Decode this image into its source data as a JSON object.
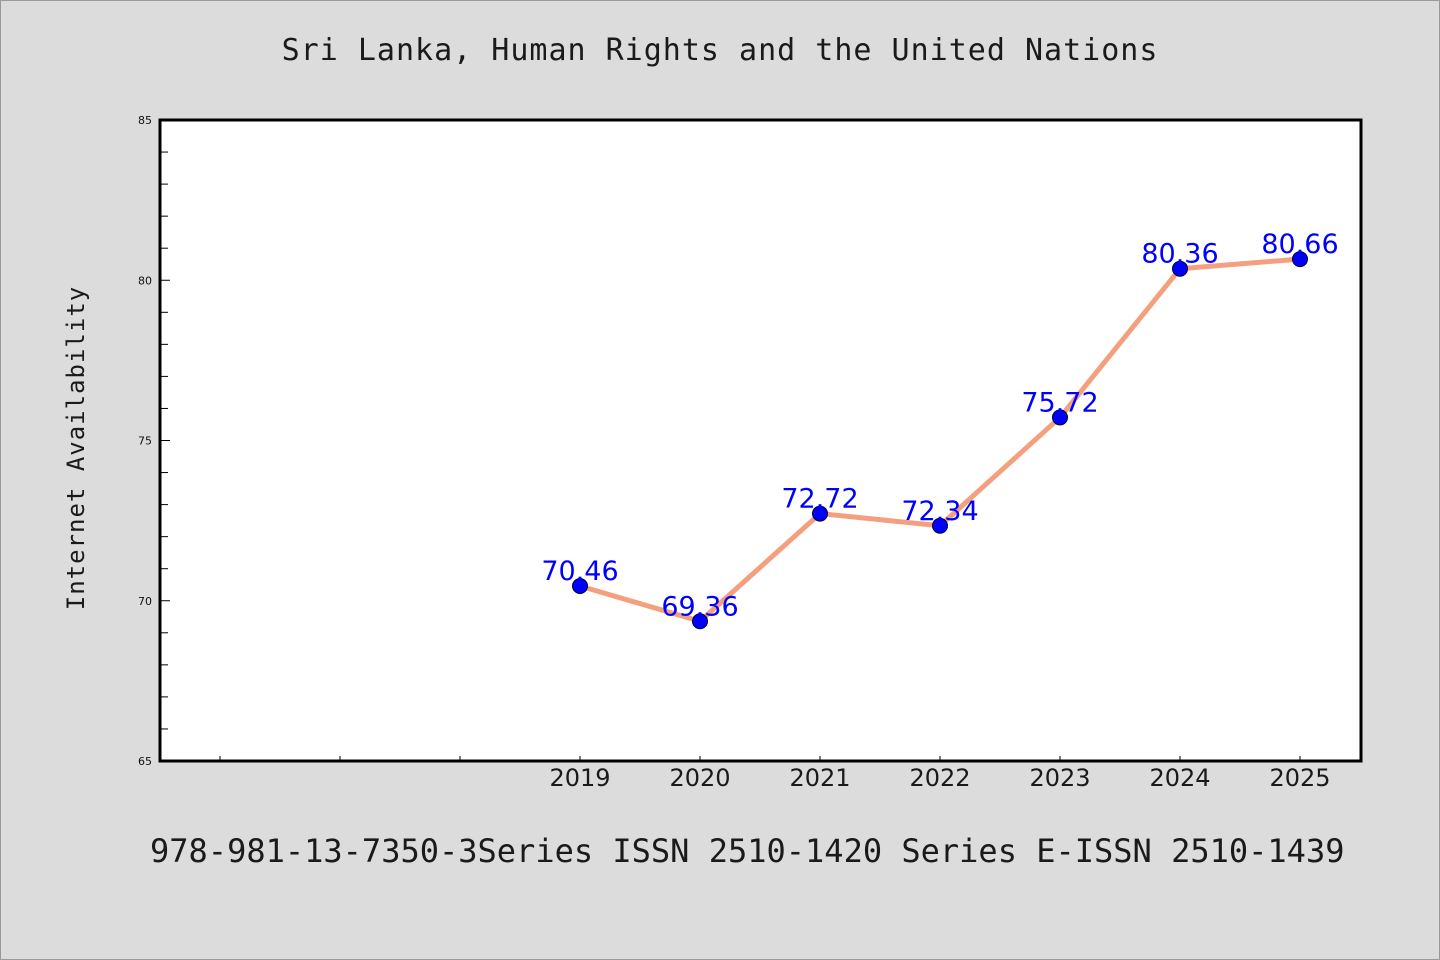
{
  "chart_data": {
    "type": "line",
    "title": "Sri Lanka, Human Rights and the United Nations",
    "ylabel": "Internet Availability",
    "xlabel": "",
    "footer": "978-981-13-7350-3Series ISSN 2510-1420 Series E-ISSN 2510-1439",
    "categories": [
      "2019",
      "2020",
      "2021",
      "2022",
      "2023",
      "2024",
      "2025"
    ],
    "series": [
      {
        "values": [
          70.46,
          69.36,
          72.72,
          72.34,
          75.72,
          80.36,
          80.66
        ],
        "labels": [
          "70.46",
          "69.36",
          "72.72",
          "72.34",
          "75.72",
          "80.36",
          "80.66"
        ]
      }
    ],
    "ylim": [
      65,
      85
    ],
    "yticks": [
      "65",
      "70",
      "75",
      "80",
      "85"
    ],
    "colors": {
      "line": "#f4a07e",
      "marker": "#0000ff",
      "label": "#0000ff",
      "background": "#dcdcdc",
      "plot_area": "#ffffff"
    },
    "grid": false,
    "legend": "none"
  }
}
